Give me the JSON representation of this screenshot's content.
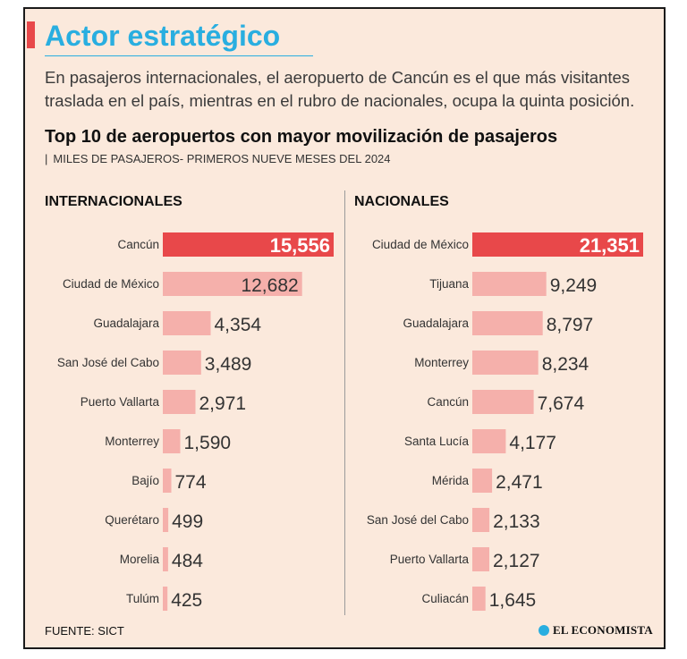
{
  "header": {
    "title": "Actor estratégico",
    "subtitle": "En pasajeros internacionales, el aeropuerto de Cancún es el que más visitantes traslada en el país, mientras en el rubro de nacionales, ocupa la quinta posición."
  },
  "chart_heading": {
    "title": "Top 10 de aeropuertos con mayor movilización de pasajeros",
    "pipe": "|",
    "subtitle": "MILES DE PASAJEROS- PRIMEROS NUEVE MESES DEL 2024"
  },
  "footer": {
    "source": "FUENTE: SICT",
    "logo": "EL ECONOMISTA"
  },
  "colors": {
    "highlight": "#e8484a",
    "bar": "#f5b0ab",
    "accent": "#29aee0"
  },
  "chart_data": [
    {
      "type": "bar",
      "orientation": "horizontal",
      "title": "INTERNACIONALES",
      "unit": "miles de pasajeros",
      "categories": [
        "Cancún",
        "Ciudad de México",
        "Guadalajara",
        "San José del Cabo",
        "Puerto Vallarta",
        "Monterrey",
        "Bajío",
        "Querétaro",
        "Morelia",
        "Tulúm"
      ],
      "values": [
        15556,
        12682,
        4354,
        3489,
        2971,
        1590,
        774,
        499,
        484,
        425
      ],
      "labels": [
        "15,556",
        "12,682",
        "4,354",
        "3,489",
        "2,971",
        "1,590",
        "774",
        "499",
        "484",
        "425"
      ],
      "highlight_index": 0
    },
    {
      "type": "bar",
      "orientation": "horizontal",
      "title": "NACIONALES",
      "unit": "miles de pasajeros",
      "categories": [
        "Ciudad de México",
        "Tijuana",
        "Guadalajara",
        "Monterrey",
        "Cancún",
        "Santa Lucía",
        "Mérida",
        "San José del Cabo",
        "Puerto Vallarta",
        "Culiacán"
      ],
      "values": [
        21351,
        9249,
        8797,
        8234,
        7674,
        4177,
        2471,
        2133,
        2127,
        1645
      ],
      "labels": [
        "21,351",
        "9,249",
        "8,797",
        "8,234",
        "7,674",
        "4,177",
        "2,471",
        "2,133",
        "2,127",
        "1,645"
      ],
      "highlight_index": 0
    }
  ]
}
